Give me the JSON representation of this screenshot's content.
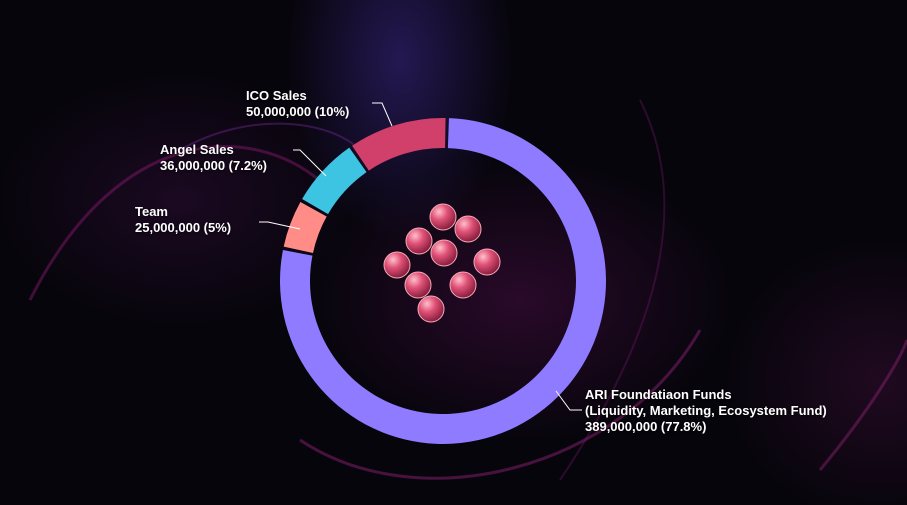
{
  "chart_data": {
    "type": "donut",
    "title": "",
    "slices": [
      {
        "name": "ARI Foundatiaon Funds",
        "detail": "(Liquidity, Marketing, Ecosystem Fund)",
        "value": 389000000,
        "value_label": "389,000,000 (77.8%)",
        "percent": 77.8,
        "color": "#8f7bff"
      },
      {
        "name": "Team",
        "value": 25000000,
        "value_label": "25,000,000 (5%)",
        "percent": 5,
        "color": "#ff8c86"
      },
      {
        "name": "Angel Sales",
        "value": 36000000,
        "value_label": "36,000,000 (7.2%)",
        "percent": 7.2,
        "color": "#3cc4e2"
      },
      {
        "name": "ICO Sales",
        "value": 50000000,
        "value_label": "50,000,000 (10%)",
        "percent": 10,
        "color": "#d0406a"
      }
    ]
  },
  "labels": {
    "ico": {
      "name": "ICO Sales",
      "value": "50,000,000 (10%)"
    },
    "angel": {
      "name": "Angel Sales",
      "value": "36,000,000 (7.2%)"
    },
    "team": {
      "name": "Team",
      "value": "25,000,000 (5%)"
    },
    "foundation": {
      "name": "ARI Foundatiaon Funds",
      "detail": "(Liquidity, Marketing, Ecosystem Fund)",
      "value": "389,000,000 (77.8%)"
    }
  },
  "colors": {
    "background": "#07050c",
    "logo": "#d9436b"
  },
  "icons": {
    "center": "ari-logo-icon"
  }
}
